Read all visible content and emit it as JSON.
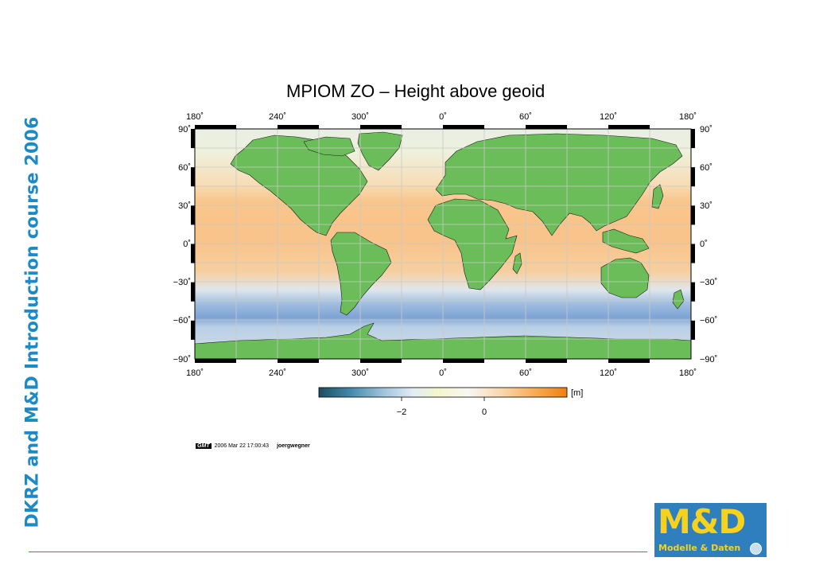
{
  "slide": {
    "side_title": "DKRZ and M&D Introduction course 2006"
  },
  "map": {
    "title": "MPIOM ZO – Height above geoid",
    "top_lon_labels": [
      "180˚",
      "240˚",
      "300˚",
      "0˚",
      "60˚",
      "120˚",
      "180˚"
    ],
    "bottom_lon_labels": [
      "180˚",
      "240˚",
      "300˚",
      "0˚",
      "60˚",
      "120˚",
      "180˚"
    ],
    "lat_labels": [
      "90˚",
      "60˚",
      "30˚",
      "0˚",
      "−30˚",
      "−60˚",
      "−90˚"
    ],
    "colorbar": {
      "unit": "[m]",
      "tick_labels": [
        "−2",
        "0"
      ],
      "colors": [
        "#1e4d5e",
        "#3f86a8",
        "#9fc3dc",
        "#e2ecf4",
        "#f4f6cc",
        "#f7f7f2",
        "#f8d6ac",
        "#f8a94c",
        "#f07f10"
      ]
    },
    "colors": {
      "land": "#6bbd5a",
      "ocean_warm": "#f9c58a",
      "ocean_mid": "#eef0dd",
      "ocean_cold": "#7ea3d3",
      "grid": "#c8c8c8"
    }
  },
  "gmt_stamp": {
    "logo": "GMT",
    "timestamp": "2006 Mar 22 17:00:43",
    "user": "joergwegner"
  },
  "brand_logo": {
    "main": "M&D",
    "sub": "Modelle & Daten"
  }
}
